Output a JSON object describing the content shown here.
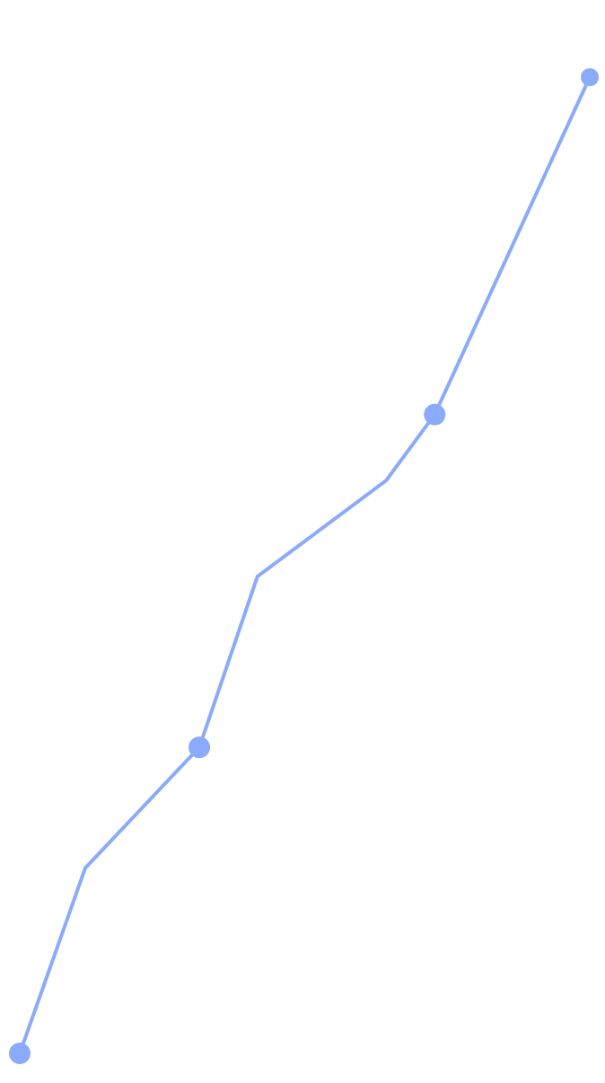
{
  "chart_data": {
    "type": "line",
    "title": "",
    "xlabel": "",
    "ylabel": "",
    "grid": true,
    "grid_style": "dashed horizontal",
    "xlim": [
      0,
      100
    ],
    "ylim": [
      -0.75,
      8
    ],
    "gridlines_y": [
      -0.75,
      0,
      1,
      2,
      3,
      4,
      5,
      6,
      7,
      8
    ],
    "series": [
      {
        "color": "#8aabf9",
        "points": [
          {
            "x": 0,
            "y": -0.74,
            "marker": true
          },
          {
            "x": 11.5,
            "y": 0.92,
            "marker": false
          },
          {
            "x": 31.5,
            "y": 2.0,
            "marker": true
          },
          {
            "x": 41.7,
            "y": 3.53,
            "marker": false
          },
          {
            "x": 64.3,
            "y": 4.39,
            "marker": false
          },
          {
            "x": 72.8,
            "y": 4.98,
            "marker": true
          },
          {
            "x": 100,
            "y": 8.0,
            "marker": true
          }
        ]
      }
    ]
  }
}
